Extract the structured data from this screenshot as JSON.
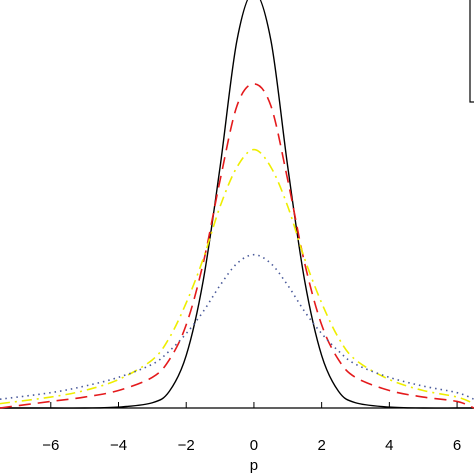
{
  "chart_data": {
    "type": "line",
    "title": "",
    "xlabel": "p",
    "ylabel": "",
    "xlim": [
      -7.5,
      6.5
    ],
    "xticks": [
      -6,
      -4,
      -2,
      0,
      2,
      4,
      6
    ],
    "xtick_labels": [
      "−6",
      "−4",
      "−2",
      "0",
      "2",
      "4",
      "6"
    ],
    "ylim": [
      0,
      1.0
    ],
    "legend": {
      "placement": "top-right",
      "entries": []
    },
    "series": [
      {
        "style": "solid",
        "color": "#000000",
        "x": [
          -7.5,
          -6,
          -5,
          -4,
          -3,
          -2.5,
          -2,
          -1.5,
          -1,
          -0.5,
          0,
          0.5,
          1,
          1.5,
          2,
          2.5,
          3,
          4,
          5,
          6,
          6.5
        ],
        "y": [
          0.0,
          0.0,
          0.0,
          0.002,
          0.012,
          0.038,
          0.12,
          0.29,
          0.55,
          0.84,
          0.95,
          0.84,
          0.55,
          0.29,
          0.12,
          0.038,
          0.012,
          0.002,
          0.0,
          0.0,
          0.0
        ]
      },
      {
        "style": "dashed",
        "color": "#e41a1c",
        "x": [
          -7.5,
          -6,
          -5,
          -4,
          -3,
          -2.5,
          -2,
          -1.5,
          -1,
          -0.5,
          0,
          0.5,
          1,
          1.5,
          2,
          2.5,
          3,
          4,
          5,
          6,
          6.5
        ],
        "y": [
          0.0,
          0.015,
          0.025,
          0.04,
          0.07,
          0.11,
          0.19,
          0.33,
          0.52,
          0.69,
          0.74,
          0.69,
          0.52,
          0.33,
          0.19,
          0.11,
          0.07,
          0.04,
          0.025,
          0.015,
          0.0
        ]
      },
      {
        "style": "dashdot",
        "color": "#eeee00",
        "x": [
          -7.5,
          -6,
          -5,
          -4,
          -3,
          -2.5,
          -2,
          -1.5,
          -1,
          -0.5,
          0,
          0.5,
          1,
          1.5,
          2,
          2.5,
          3,
          4,
          5,
          6,
          6.5
        ],
        "y": [
          0.01,
          0.025,
          0.04,
          0.065,
          0.11,
          0.16,
          0.24,
          0.34,
          0.46,
          0.55,
          0.59,
          0.55,
          0.46,
          0.34,
          0.24,
          0.16,
          0.11,
          0.065,
          0.04,
          0.025,
          0.01
        ]
      },
      {
        "style": "dotted",
        "color": "#4a5a9a",
        "x": [
          -7.5,
          -6,
          -5,
          -4,
          -3,
          -2.5,
          -2,
          -1.5,
          -1,
          -0.5,
          0,
          0.5,
          1,
          1.5,
          2,
          2.5,
          3,
          4,
          5,
          6,
          6.5
        ],
        "y": [
          0.02,
          0.035,
          0.05,
          0.07,
          0.1,
          0.13,
          0.17,
          0.22,
          0.28,
          0.33,
          0.35,
          0.33,
          0.28,
          0.22,
          0.17,
          0.13,
          0.1,
          0.07,
          0.05,
          0.035,
          0.02
        ]
      }
    ]
  }
}
